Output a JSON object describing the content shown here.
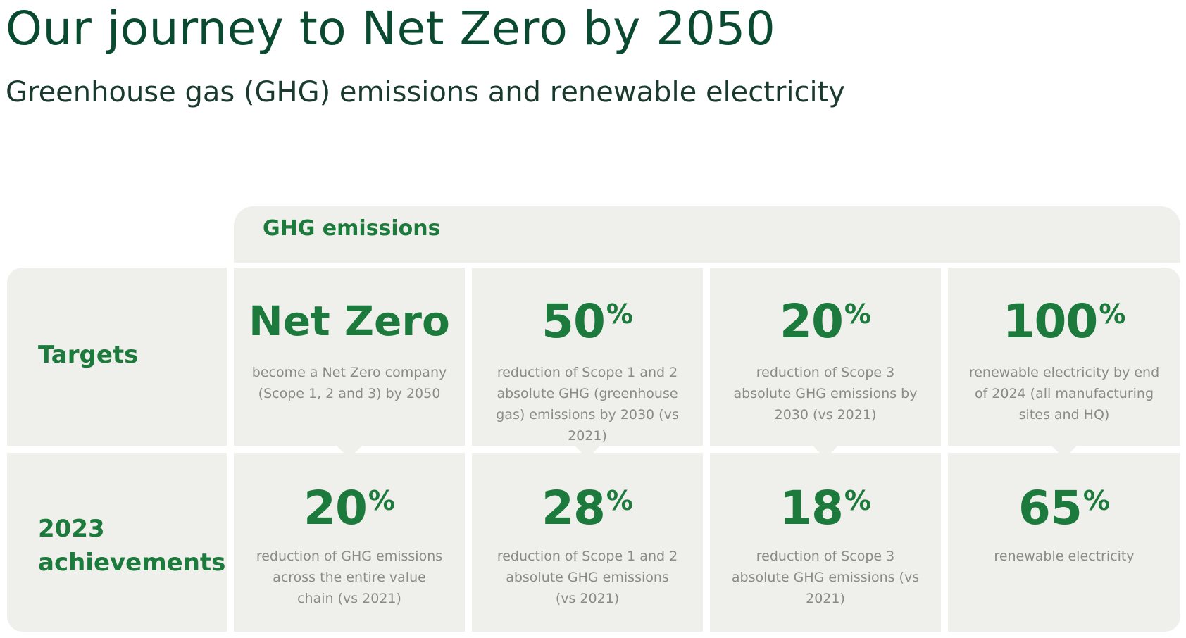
{
  "title": "Our journey to Net Zero by 2050",
  "subtitle": "Greenhouse gas (GHG) emissions and renewable electricity",
  "ghg_header": "GHG emissions",
  "rows": {
    "targets_label": "Targets",
    "achievements_label_line1": "2023",
    "achievements_label_line2": "achievements"
  },
  "targets": [
    {
      "value": "Net Zero",
      "unit": "",
      "description": "become a Net Zero company (Scope 1, 2 and 3) by 2050"
    },
    {
      "value": "50",
      "unit": "%",
      "description": "reduction of Scope 1 and 2 absolute GHG (greenhouse gas) emissions by 2030 (vs 2021)"
    },
    {
      "value": "20",
      "unit": "%",
      "description": "reduction of Scope 3 absolute GHG emissions by 2030 (vs 2021)"
    },
    {
      "value": "100",
      "unit": "%",
      "description": "renewable electricity by end of 2024 (all manufacturing sites and HQ)"
    }
  ],
  "achievements": [
    {
      "value": "20",
      "unit": "%",
      "description": "reduction of GHG emissions across the entire value chain (vs 2021)"
    },
    {
      "value": "28",
      "unit": "%",
      "description": "reduction of Scope 1 and 2 absolute GHG emissions (vs 2021)"
    },
    {
      "value": "18",
      "unit": "%",
      "description": "reduction of Scope 3 absolute GHG emissions (vs 2021)"
    },
    {
      "value": "65",
      "unit": "%",
      "description": "renewable electricity"
    }
  ],
  "colors": {
    "accent_green": "#1c7a3c",
    "title_green": "#0a4a30",
    "panel_bg": "#efefeb",
    "muted_text": "#8a8a86"
  }
}
